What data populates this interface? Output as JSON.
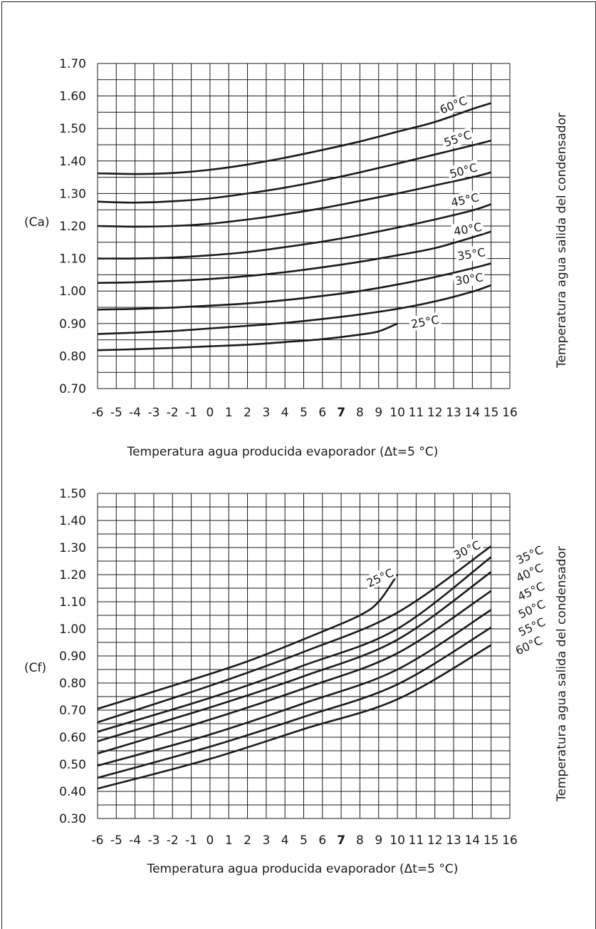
{
  "chart_data": [
    {
      "type": "line",
      "ylabel": "(Ca)",
      "xlabel": "Temperatura agua producida evaporador (Δt=5 °C)",
      "series_axis_label": "Temperatura agua salida del condensador",
      "x_ticks": [
        "-6",
        "-5",
        "-4",
        "-3",
        "-2",
        "-1",
        "0",
        "1",
        "2",
        "3",
        "4",
        "5",
        "6",
        "7",
        "8",
        "9",
        "10",
        "11",
        "12",
        "13",
        "14",
        "15",
        "16"
      ],
      "x_tick_bold": "7",
      "y_ticks": [
        "0.70",
        "0.80",
        "0.90",
        "1.00",
        "1.10",
        "1.20",
        "1.30",
        "1.40",
        "1.50",
        "1.60",
        "1.70"
      ],
      "xlim": [
        -6,
        16
      ],
      "ylim": [
        0.7,
        1.7
      ],
      "grid": true,
      "series": [
        {
          "name": "60°C",
          "x": [
            -6,
            -4,
            -2,
            0,
            2,
            4,
            6,
            8,
            10,
            12,
            14,
            15
          ],
          "y": [
            1.362,
            1.36,
            1.363,
            1.373,
            1.389,
            1.41,
            1.434,
            1.46,
            1.49,
            1.52,
            1.56,
            1.578
          ]
        },
        {
          "name": "55°C",
          "x": [
            -6,
            -4,
            -2,
            0,
            2,
            4,
            6,
            8,
            10,
            12,
            14,
            15
          ],
          "y": [
            1.275,
            1.272,
            1.276,
            1.285,
            1.3,
            1.318,
            1.34,
            1.365,
            1.392,
            1.42,
            1.448,
            1.463
          ]
        },
        {
          "name": "50°C",
          "x": [
            -6,
            -4,
            -2,
            0,
            2,
            4,
            6,
            8,
            10,
            12,
            14,
            15
          ],
          "y": [
            1.2,
            1.198,
            1.2,
            1.207,
            1.22,
            1.236,
            1.255,
            1.277,
            1.3,
            1.325,
            1.35,
            1.365
          ]
        },
        {
          "name": "45°C",
          "x": [
            -6,
            -4,
            -2,
            0,
            2,
            4,
            6,
            8,
            10,
            12,
            14,
            15
          ],
          "y": [
            1.1,
            1.1,
            1.103,
            1.11,
            1.12,
            1.135,
            1.152,
            1.172,
            1.195,
            1.22,
            1.248,
            1.267
          ]
        },
        {
          "name": "40°C",
          "x": [
            -6,
            -4,
            -2,
            0,
            2,
            4,
            6,
            8,
            10,
            12,
            14,
            15
          ],
          "y": [
            1.025,
            1.027,
            1.031,
            1.037,
            1.046,
            1.058,
            1.073,
            1.09,
            1.11,
            1.132,
            1.165,
            1.183
          ]
        },
        {
          "name": "35°C",
          "x": [
            -6,
            -4,
            -2,
            0,
            2,
            4,
            6,
            8,
            10,
            12,
            14,
            15
          ],
          "y": [
            0.943,
            0.945,
            0.949,
            0.955,
            0.962,
            0.972,
            0.985,
            1.0,
            1.02,
            1.043,
            1.07,
            1.085
          ]
        },
        {
          "name": "30°C",
          "x": [
            -6,
            -4,
            -2,
            0,
            2,
            4,
            6,
            8,
            10,
            12,
            14,
            15
          ],
          "y": [
            0.868,
            0.872,
            0.877,
            0.885,
            0.893,
            0.902,
            0.914,
            0.928,
            0.945,
            0.968,
            0.998,
            1.018
          ]
        },
        {
          "name": "25°C",
          "x": [
            -6,
            -4,
            -2,
            0,
            2,
            4,
            6,
            8,
            9,
            10
          ],
          "y": [
            0.818,
            0.821,
            0.825,
            0.83,
            0.835,
            0.843,
            0.852,
            0.866,
            0.876,
            0.9
          ]
        }
      ],
      "series_labels": [
        "60°C",
        "55°C",
        "50°C",
        "45°C",
        "40°C",
        "35°C",
        "30°C",
        "25°C"
      ]
    },
    {
      "type": "line",
      "ylabel": "(Cf)",
      "xlabel": "Temperatura agua producida evaporador (Δt=5 °C)",
      "series_axis_label": "Temperatura agua salida del condensador",
      "x_ticks": [
        "-6",
        "-5",
        "-4",
        "-3",
        "-2",
        "-1",
        "0",
        "1",
        "2",
        "3",
        "4",
        "5",
        "6",
        "7",
        "8",
        "9",
        "10",
        "11",
        "12",
        "13",
        "14",
        "15",
        "16"
      ],
      "x_tick_bold": "7",
      "y_ticks": [
        "0.30",
        "0.40",
        "0.50",
        "0.60",
        "0.70",
        "0.80",
        "0.90",
        "1.00",
        "1.10",
        "1.20",
        "1.30",
        "1.40",
        "1.50"
      ],
      "xlim": [
        -6,
        16
      ],
      "ylim": [
        0.3,
        1.5
      ],
      "grid": true,
      "series": [
        {
          "name": "25°C",
          "x": [
            -6,
            -2,
            2,
            6,
            8,
            9,
            10
          ],
          "y": [
            0.705,
            0.79,
            0.88,
            0.99,
            1.05,
            1.1,
            1.2
          ]
        },
        {
          "name": "30°C",
          "x": [
            -6,
            0,
            5,
            10,
            15
          ],
          "y": [
            0.655,
            0.79,
            0.915,
            1.06,
            1.305
          ]
        },
        {
          "name": "35°C",
          "x": [
            -6,
            0,
            5,
            10,
            15
          ],
          "y": [
            0.62,
            0.745,
            0.865,
            1.0,
            1.265
          ]
        },
        {
          "name": "40°C",
          "x": [
            -6,
            0,
            5,
            10,
            15
          ],
          "y": [
            0.585,
            0.71,
            0.825,
            0.96,
            1.21
          ]
        },
        {
          "name": "45°C",
          "x": [
            -6,
            0,
            5,
            10,
            15
          ],
          "y": [
            0.54,
            0.665,
            0.78,
            0.91,
            1.14
          ]
        },
        {
          "name": "50°C",
          "x": [
            -6,
            0,
            5,
            10,
            15
          ],
          "y": [
            0.495,
            0.61,
            0.725,
            0.85,
            1.07
          ]
        },
        {
          "name": "55°C",
          "x": [
            -6,
            0,
            5,
            10,
            15
          ],
          "y": [
            0.45,
            0.565,
            0.675,
            0.795,
            1.005
          ]
        },
        {
          "name": "60°C",
          "x": [
            -6,
            0,
            5,
            10,
            15
          ],
          "y": [
            0.41,
            0.52,
            0.63,
            0.74,
            0.94
          ]
        }
      ],
      "series_labels": [
        "25°C",
        "30°C",
        "35°C",
        "40°C",
        "45°C",
        "50°C",
        "55°C",
        "60°C"
      ]
    }
  ]
}
